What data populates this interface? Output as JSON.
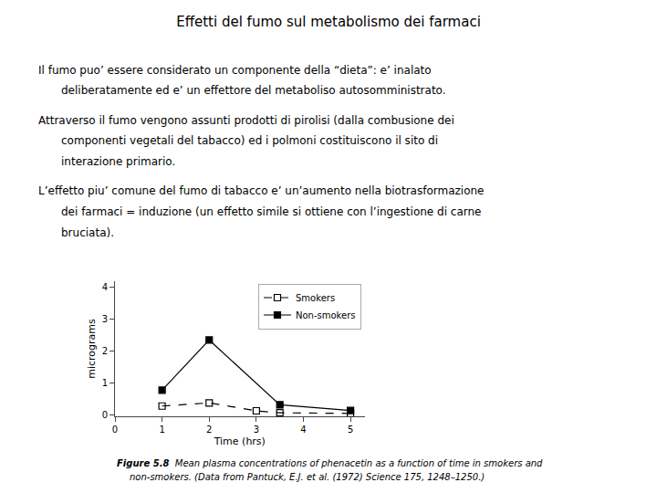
{
  "chart_data": {
    "type": "line",
    "title": "Effetti del fumo sul metabolismo dei farmaci",
    "annotations": [
      [
        "Il fumo puo’ essere considerato un componente della “dieta”: e’ inalato",
        "deliberatamente ed e’ un effettore del metaboliso autosomministrato."
      ],
      [
        "Attraverso il fumo vengono assunti prodotti di pirolisi (dalla combusione dei",
        "componenti vegetali del tabacco) ed i polmoni costituiscono il sito di",
        "interazione primario."
      ],
      [
        "L’effetto piu’ comune del fumo di tabacco e’ un’aumento nella biotrasformazione",
        "dei farmaci = induzione (un effetto simile si ottiene con l’ingestione di carne",
        "bruciata)."
      ],
      [
        "Figure 5.8",
        "Mean plasma concentrations of phenacetin as a function of time in smokers and",
        "non-smokers. (Data from Pantuck, E.J. et al. (1972) Science 175, 1248–1250.)"
      ]
    ],
    "xlabel": "Time (hrs)",
    "ylabel": "micrograms",
    "xlim": [
      0,
      5.3
    ],
    "ylim": [
      -0.05,
      4.2
    ],
    "xticks": [
      0,
      1,
      2,
      3,
      4,
      5
    ],
    "yticks": [
      0,
      1,
      2,
      3,
      4
    ],
    "grid": false,
    "legend": "upper right",
    "series": [
      {
        "name": "Smokers",
        "color": "#000000",
        "x": [
          1,
          2,
          3,
          3.5,
          5
        ],
        "values": [
          0.28,
          0.38,
          0.13,
          0.07,
          0.05
        ],
        "marker": "square-open",
        "line_style": "dashed"
      },
      {
        "name": "Non-smokers",
        "color": "#000000",
        "x": [
          1,
          2,
          3.5,
          5
        ],
        "values": [
          0.78,
          2.35,
          0.32,
          0.14
        ],
        "marker": "square",
        "line_style": "solid"
      }
    ]
  }
}
